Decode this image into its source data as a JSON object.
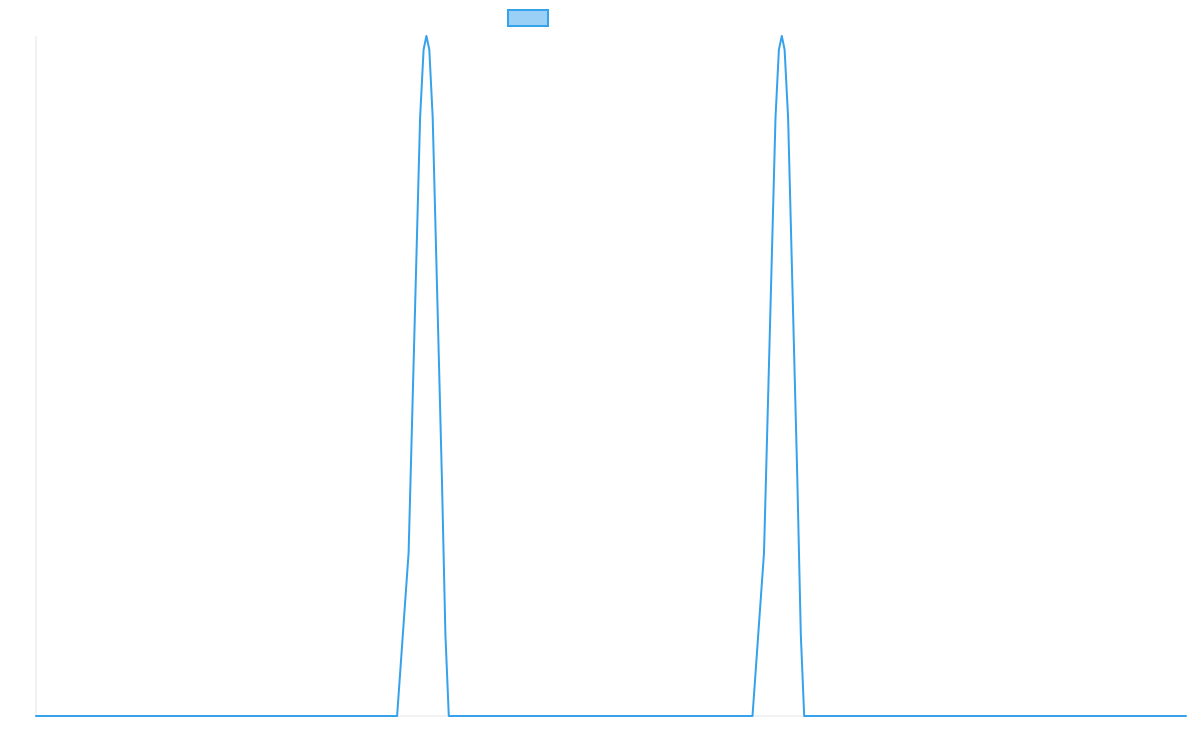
{
  "chart_data": {
    "type": "line",
    "title": "",
    "xlabel": "",
    "ylabel": "",
    "grid": false,
    "legend": {
      "position": "top-center",
      "entries": [
        {
          "name": "",
          "color": "#36a2eb",
          "fill": "#9ad0f5"
        }
      ]
    },
    "xlim": [
      0,
      100
    ],
    "ylim": [
      0,
      1
    ],
    "series": [
      {
        "name": "",
        "color": "#36a2eb",
        "points": [
          {
            "x": 0,
            "y": 0
          },
          {
            "x": 31.4,
            "y": 0
          },
          {
            "x": 32.4,
            "y": 0.24
          },
          {
            "x": 33.4,
            "y": 0.88
          },
          {
            "x": 33.7,
            "y": 0.98
          },
          {
            "x": 33.95,
            "y": 1
          },
          {
            "x": 34.2,
            "y": 0.98
          },
          {
            "x": 34.5,
            "y": 0.88
          },
          {
            "x": 35.3,
            "y": 0.35
          },
          {
            "x": 35.6,
            "y": 0.12
          },
          {
            "x": 35.9,
            "y": 0
          },
          {
            "x": 62.3,
            "y": 0
          },
          {
            "x": 63.3,
            "y": 0.24
          },
          {
            "x": 64.3,
            "y": 0.88
          },
          {
            "x": 64.6,
            "y": 0.98
          },
          {
            "x": 64.85,
            "y": 1
          },
          {
            "x": 65.1,
            "y": 0.98
          },
          {
            "x": 65.4,
            "y": 0.88
          },
          {
            "x": 66.2,
            "y": 0.35
          },
          {
            "x": 66.5,
            "y": 0.12
          },
          {
            "x": 66.8,
            "y": 0
          },
          {
            "x": 100,
            "y": 0
          }
        ]
      }
    ]
  }
}
